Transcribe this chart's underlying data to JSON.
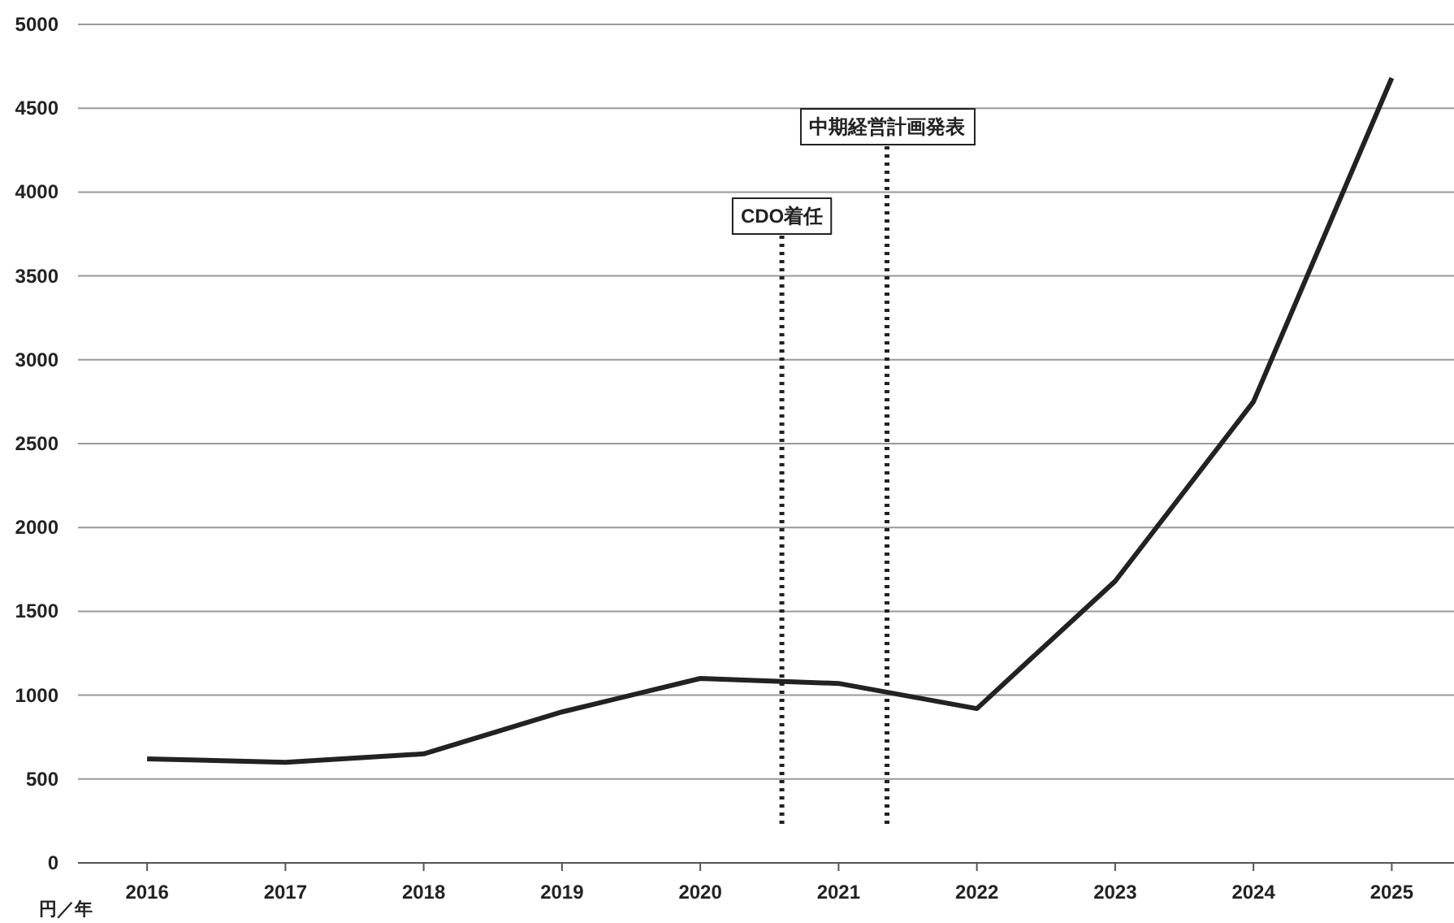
{
  "chart_data": {
    "type": "line",
    "x": [
      2016,
      2017,
      2018,
      2019,
      2020,
      2021,
      2022,
      2023,
      2024,
      2025
    ],
    "series": [
      {
        "color": "#222222",
        "values": [
          620,
          600,
          650,
          900,
          1100,
          1070,
          920,
          1680,
          2750,
          4680
        ]
      }
    ],
    "xlim": [
      2015.5,
      2025.45
    ],
    "xticks": [
      2016,
      2017,
      2018,
      2019,
      2020,
      2021,
      2022,
      2023,
      2024,
      2025
    ],
    "ylim": [
      0,
      5000
    ],
    "yticks": [
      0,
      500,
      1000,
      1500,
      2000,
      2500,
      3000,
      3500,
      4000,
      4500,
      5000
    ],
    "grid": "y",
    "marker": "none",
    "line_style": "solid",
    "ref_lines": [
      {
        "axis": "x",
        "value": 2020.59,
        "label": "CDO着任",
        "color": "#222222",
        "line_style": "dotted"
      },
      {
        "axis": "x",
        "value": 2021.35,
        "label": "中期経営計画発表",
        "color": "#222222",
        "line_style": "dotted"
      }
    ],
    "annotations": [
      "円／年"
    ]
  }
}
